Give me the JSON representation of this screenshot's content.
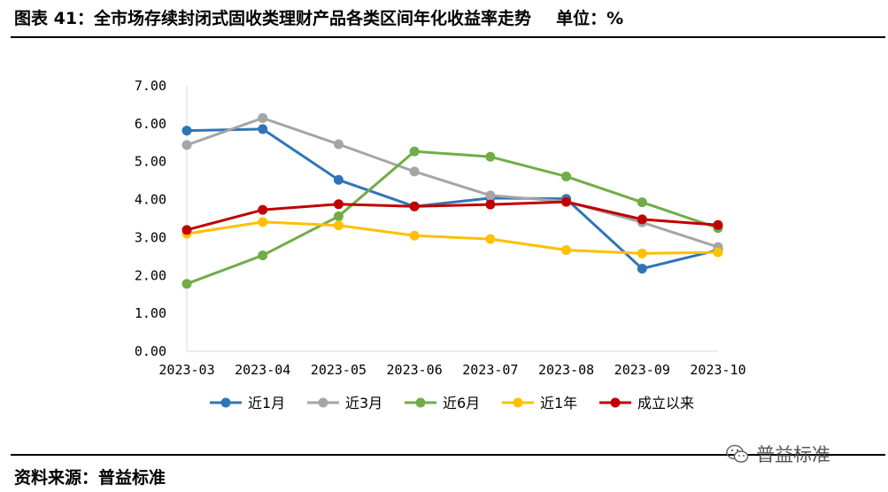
{
  "header": {
    "title": "图表 41：全市场存续封闭式固收类理财产品各类区间年化收益率走势",
    "unit": "单位：%"
  },
  "footer": {
    "source": "资料来源：普益标准",
    "watermark": "普益标准"
  },
  "colors": {
    "near1m": "#2E75B6",
    "near3m": "#A5A5A5",
    "near6m": "#70AD47",
    "near1y": "#FFC000",
    "since": "#C00000",
    "axis": "#D9D9D9"
  },
  "chart_data": {
    "type": "line",
    "title": "",
    "xlabel": "",
    "ylabel": "",
    "ylim": [
      0,
      7
    ],
    "yticks": [
      "0.00",
      "1.00",
      "2.00",
      "3.00",
      "4.00",
      "5.00",
      "6.00",
      "7.00"
    ],
    "categories": [
      "2023-03",
      "2023-04",
      "2023-05",
      "2023-06",
      "2023-07",
      "2023-08",
      "2023-09",
      "2023-10"
    ],
    "grid": false,
    "legend_position": "bottom",
    "series": [
      {
        "name": "近1月",
        "color": "#2E75B6",
        "values": [
          5.82,
          5.86,
          4.52,
          3.82,
          4.04,
          4.02,
          2.18,
          2.67
        ]
      },
      {
        "name": "近3月",
        "color": "#A5A5A5",
        "values": [
          5.44,
          6.15,
          5.46,
          4.74,
          4.11,
          3.95,
          3.4,
          2.75
        ]
      },
      {
        "name": "近6月",
        "color": "#70AD47",
        "values": [
          1.78,
          2.53,
          3.56,
          5.27,
          5.13,
          4.61,
          3.93,
          3.25
        ]
      },
      {
        "name": "近1年",
        "color": "#FFC000",
        "values": [
          3.1,
          3.41,
          3.32,
          3.05,
          2.96,
          2.67,
          2.58,
          2.61
        ]
      },
      {
        "name": "成立以来",
        "color": "#C00000",
        "values": [
          3.2,
          3.73,
          3.88,
          3.82,
          3.87,
          3.94,
          3.48,
          3.33
        ]
      }
    ]
  }
}
